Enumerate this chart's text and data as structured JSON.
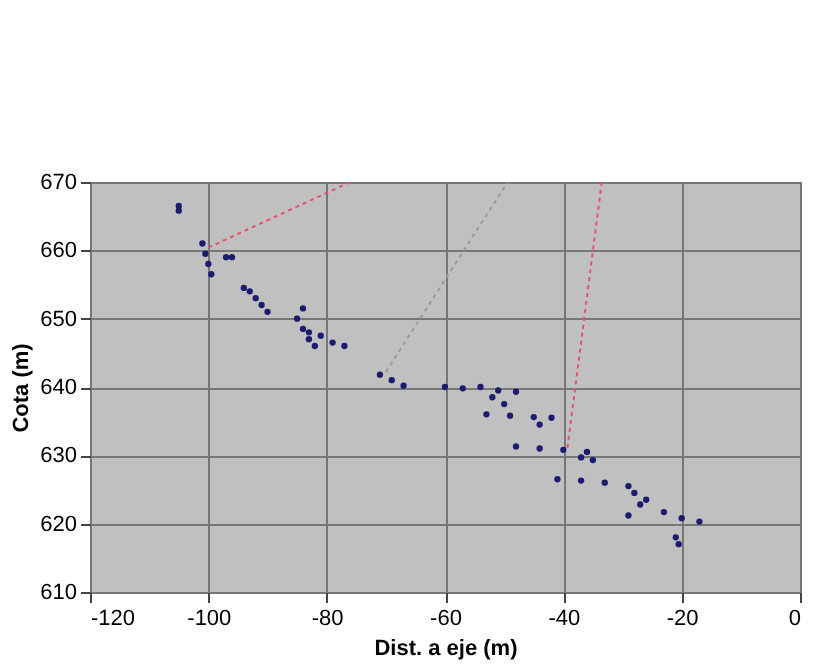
{
  "chart_data": {
    "type": "scatter",
    "xlabel": "Dist. a eje (m)",
    "ylabel": "Cota (m)",
    "xlim": [
      -120,
      0
    ],
    "ylim": [
      610,
      670
    ],
    "xticks": [
      -120,
      -100,
      -80,
      -60,
      -40,
      -20,
      0
    ],
    "yticks": [
      610,
      620,
      630,
      640,
      650,
      660,
      670
    ],
    "grid": true,
    "series": [
      {
        "color": "#1c1c6e",
        "marker": "circle",
        "x": [
          -105,
          -105,
          -101,
          -100.5,
          -100,
          -99.5,
          -97,
          -96,
          -94,
          -93,
          -92,
          -91,
          -90,
          -84,
          -85,
          -84,
          -83,
          -82,
          -83,
          -81,
          -79,
          -77,
          -71,
          -69,
          -67,
          -60,
          -57,
          -54,
          -51,
          -48,
          -52,
          -50,
          -53,
          -49,
          -45,
          -42,
          -44,
          -48,
          -44,
          -40,
          -36,
          -37,
          -35,
          -41,
          -37,
          -33,
          -29,
          -28,
          -26,
          -27,
          -23,
          -20,
          -17,
          -29,
          -21,
          -20.5
        ],
        "values": [
          666.5,
          665.8,
          661,
          659.5,
          658,
          656.5,
          659,
          659,
          654.5,
          654,
          653,
          652,
          651,
          651.5,
          650,
          648.5,
          647,
          646,
          648,
          647.5,
          646.5,
          646,
          641.8,
          641,
          640.2,
          640,
          639.8,
          640,
          639.5,
          639.3,
          638.5,
          637.5,
          636,
          635.8,
          635.6,
          635.5,
          634.5,
          631.3,
          631,
          630.8,
          630.5,
          629.7,
          629.3,
          626.5,
          626.3,
          626,
          625.5,
          624.5,
          623.5,
          622.8,
          621.7,
          620.8,
          620.3,
          621.2,
          618,
          617
        ]
      },
      {
        "type": "line",
        "color": "#e8506a",
        "line_style": "dotted",
        "marker": "none",
        "x": [
          -100,
          -76
        ],
        "values": [
          660.4,
          670
        ]
      },
      {
        "type": "line",
        "color": "#e8506a",
        "line_style": "dotted",
        "marker": "none",
        "x": [
          -33.5,
          -39.3
        ],
        "values": [
          670,
          631.1
        ]
      },
      {
        "type": "line",
        "color": "#9a9a9a",
        "line_style": "dotted",
        "marker": "none",
        "x": [
          -70,
          -49.4
        ],
        "values": [
          642.2,
          670
        ]
      }
    ]
  }
}
